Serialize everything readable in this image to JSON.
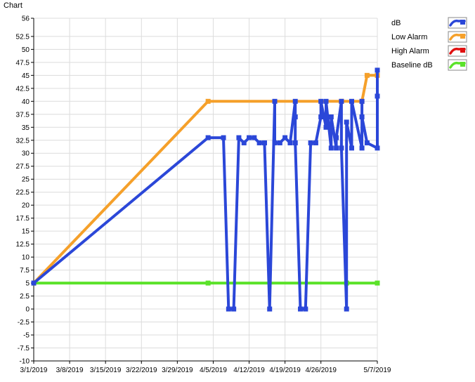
{
  "page_title": "Chart",
  "chart_data": {
    "type": "line",
    "title": "Chart",
    "xlabel": "",
    "ylabel": "",
    "ylim": [
      -10,
      56
    ],
    "y_ticks": [
      -10,
      -7.5,
      -5,
      -2.5,
      0,
      2.5,
      5,
      7.5,
      10,
      12.5,
      15,
      17.5,
      20,
      22.5,
      25,
      27.5,
      30,
      32.5,
      35,
      37.5,
      40,
      42.5,
      45,
      47.5,
      50,
      52.5,
      56
    ],
    "x_range": [
      "2019-03-01",
      "2019-05-07"
    ],
    "x_ticks": [
      {
        "date": "2019-03-01",
        "label": "3/1/2019"
      },
      {
        "date": "2019-03-08",
        "label": "3/8/2019"
      },
      {
        "date": "2019-03-15",
        "label": "3/15/2019"
      },
      {
        "date": "2019-03-22",
        "label": "3/22/2019"
      },
      {
        "date": "2019-03-29",
        "label": "3/29/2019"
      },
      {
        "date": "2019-04-05",
        "label": "4/5/2019"
      },
      {
        "date": "2019-04-12",
        "label": "4/12/2019"
      },
      {
        "date": "2019-04-19",
        "label": "4/19/2019"
      },
      {
        "date": "2019-04-26",
        "label": "4/26/2019"
      },
      {
        "date": "2019-05-07",
        "label": "5/7/2019"
      }
    ],
    "grid": true,
    "legend_position": "right",
    "series": [
      {
        "name": "dB",
        "color": "#2b47d8",
        "points": [
          [
            "2019-03-01",
            5
          ],
          [
            "2019-04-04",
            33
          ],
          [
            "2019-04-07",
            33
          ],
          [
            "2019-04-08",
            0
          ],
          [
            "2019-04-09",
            0
          ],
          [
            "2019-04-10",
            33
          ],
          [
            "2019-04-11",
            32
          ],
          [
            "2019-04-12",
            33
          ],
          [
            "2019-04-13",
            33
          ],
          [
            "2019-04-14",
            32
          ],
          [
            "2019-04-15",
            32
          ],
          [
            "2019-04-15",
            32
          ],
          [
            "2019-04-16",
            0
          ],
          [
            "2019-04-17",
            40
          ],
          [
            "2019-04-17",
            32
          ],
          [
            "2019-04-18",
            32
          ],
          [
            "2019-04-19",
            33
          ],
          [
            "2019-04-20",
            32
          ],
          [
            "2019-04-21",
            40
          ],
          [
            "2019-04-21",
            37
          ],
          [
            "2019-04-21",
            32
          ],
          [
            "2019-04-22",
            0
          ],
          [
            "2019-04-23",
            0
          ],
          [
            "2019-04-24",
            32
          ],
          [
            "2019-04-25",
            32
          ],
          [
            "2019-04-26",
            37
          ],
          [
            "2019-04-26",
            40
          ],
          [
            "2019-04-27",
            35
          ],
          [
            "2019-04-27",
            40
          ],
          [
            "2019-04-28",
            31
          ],
          [
            "2019-04-28",
            37
          ],
          [
            "2019-04-29",
            31
          ],
          [
            "2019-04-29",
            33
          ],
          [
            "2019-04-30",
            40
          ],
          [
            "2019-04-30",
            31
          ],
          [
            "2019-05-01",
            0
          ],
          [
            "2019-05-01",
            36
          ],
          [
            "2019-05-02",
            31
          ],
          [
            "2019-05-02",
            40
          ],
          [
            "2019-05-04",
            31
          ],
          [
            "2019-05-04",
            40
          ],
          [
            "2019-05-04",
            37
          ],
          [
            "2019-05-05",
            32
          ],
          [
            "2019-05-07",
            31
          ],
          [
            "2019-05-07",
            41
          ],
          [
            "2019-05-07",
            46
          ]
        ]
      },
      {
        "name": "Low Alarm",
        "color": "#f5a02a",
        "points": [
          [
            "2019-03-01",
            5
          ],
          [
            "2019-04-04",
            40
          ],
          [
            "2019-04-30",
            40
          ],
          [
            "2019-05-04",
            40
          ],
          [
            "2019-05-05",
            45
          ],
          [
            "2019-05-07",
            45
          ]
        ]
      },
      {
        "name": "High Alarm",
        "color": "#e01010",
        "points": []
      },
      {
        "name": "Baseline dB",
        "color": "#5be22a",
        "points": [
          [
            "2019-03-01",
            5
          ],
          [
            "2019-04-04",
            5
          ],
          [
            "2019-05-01",
            5
          ],
          [
            "2019-05-07",
            5
          ]
        ]
      }
    ]
  }
}
